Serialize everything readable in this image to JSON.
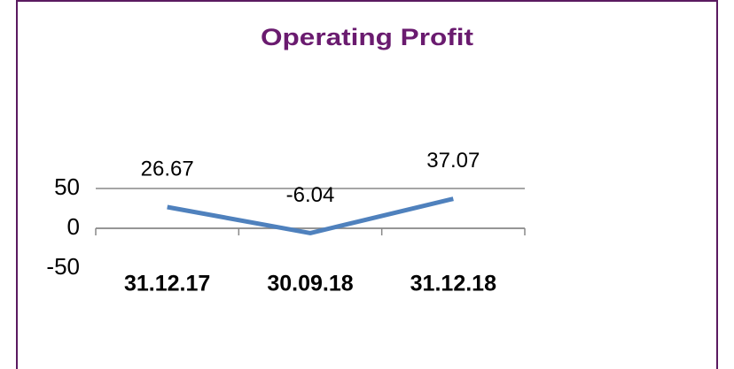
{
  "chart_data": {
    "type": "line",
    "title": "Operating Profit",
    "categories": [
      "31.12.17",
      "30.09.18",
      "31.12.18"
    ],
    "series": [
      {
        "name": "Operating Profit",
        "color": "#4f81bd",
        "values": [
          26.67,
          -6.04,
          37.07
        ]
      }
    ],
    "ylim": [
      -50,
      50
    ],
    "yticks": [
      -50,
      0,
      50
    ],
    "grid": true
  }
}
